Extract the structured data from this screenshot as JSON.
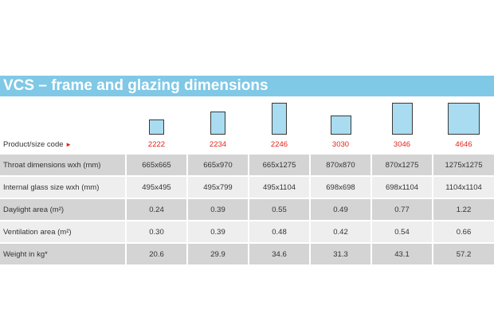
{
  "title": "VCS – frame and glazing dimensions",
  "header_label": "Product/size code",
  "pointer_glyph": "►",
  "accent_colors": {
    "title_bar": "#7fc8e6",
    "code_text": "#e2231a",
    "window_fill": "#a9dcf0"
  },
  "products": [
    {
      "code": "2222"
    },
    {
      "code": "2234"
    },
    {
      "code": "2246"
    },
    {
      "code": "3030"
    },
    {
      "code": "3046"
    },
    {
      "code": "4646"
    }
  ],
  "rows": [
    {
      "label": "Throat dimensions wxh (mm)",
      "values": [
        "665x665",
        "665x970",
        "665x1275",
        "870x870",
        "870x1275",
        "1275x1275"
      ]
    },
    {
      "label": "Internal glass size wxh (mm)",
      "values": [
        "495x495",
        "495x799",
        "495x1104",
        "698x698",
        "698x1104",
        "1104x1104"
      ]
    },
    {
      "label": "Daylight area (m²)",
      "values": [
        "0.24",
        "0.39",
        "0.55",
        "0.49",
        "0.77",
        "1.22"
      ]
    },
    {
      "label": "Ventilation area (m²)",
      "values": [
        "0.30",
        "0.39",
        "0.48",
        "0.42",
        "0.54",
        "0.66"
      ]
    },
    {
      "label": "Weight in kg*",
      "values": [
        "20.6",
        "29.9",
        "34.6",
        "31.3",
        "43.1",
        "57.2"
      ]
    }
  ]
}
